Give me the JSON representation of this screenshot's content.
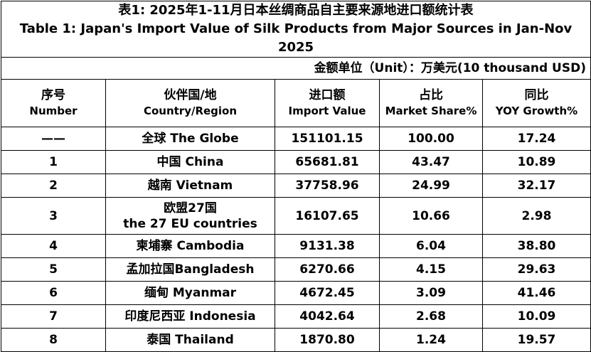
{
  "title": {
    "zh": "表1: 2025年1-11月日本丝绸商品自主要来源地进口额统计表",
    "en": "Table 1: Japan's Import Value of Silk Products from Major Sources in Jan-Nov 2025"
  },
  "unit": "金额单位（Unit）：万美元(10 thousand USD)",
  "table": {
    "header": [
      [
        "序号",
        "Number"
      ],
      [
        "伙伴国/地",
        "Country/Region"
      ],
      [
        "进口额",
        "Import Value"
      ],
      [
        "占比",
        "Market Share%"
      ],
      [
        "同比",
        "YOY Growth%"
      ]
    ],
    "rows": [
      [
        "——",
        "全球  The Globe",
        "151101.15",
        "100.00",
        "17.24"
      ],
      [
        "1",
        "中国 China",
        "65681.81",
        "43.47",
        "10.89"
      ],
      [
        "2",
        "越南 Vietnam",
        "37758.96",
        "24.99",
        "32.17"
      ],
      [
        "3",
        [
          "欧盟27国",
          "the 27 EU countries"
        ],
        "16107.65",
        "10.66",
        "2.98"
      ],
      [
        "4",
        "柬埔寨 Cambodia",
        "9131.38",
        "6.04",
        "38.80"
      ],
      [
        "5",
        "孟加拉国Bangladesh",
        "6270.66",
        "4.15",
        "29.63"
      ],
      [
        "6",
        "缅甸 Myanmar",
        "4672.45",
        "3.09",
        "41.46"
      ],
      [
        "7",
        "印度尼西亚 Indonesia",
        "4042.64",
        "2.68",
        "10.09"
      ],
      [
        "8",
        "泰国 Thailand",
        "1870.80",
        "1.24",
        "19.57"
      ]
    ]
  }
}
